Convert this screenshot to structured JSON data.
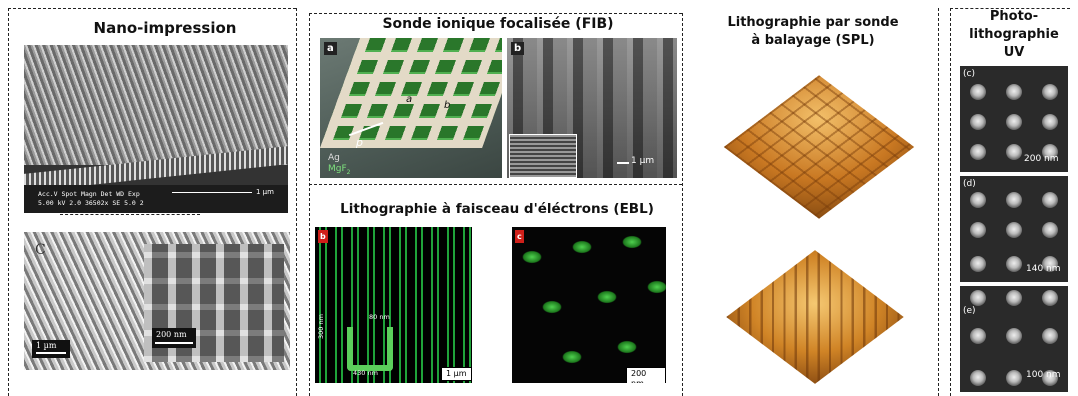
{
  "sections": {
    "nano": {
      "title": "Nano-impression"
    },
    "fib": {
      "title": "Sonde ionique focalisée (FIB)"
    },
    "ebl": {
      "title": "Lithographie à faisceau d'éléctrons (EBL)"
    },
    "spl": {
      "title_line1": "Lithographie par sonde",
      "title_line2": "à balayage (SPL)"
    },
    "uv": {
      "title_line1": "Photo-",
      "title_line2": "lithographie",
      "title_line3": "UV"
    }
  },
  "nano_top": {
    "info_row1": "Acc.V  Spot Magn    Det  WD  Exp",
    "info_row2": "5.00 kV 2.0  36502x  SE   5.0  2",
    "scale": "1 µm"
  },
  "nano_bottom": {
    "panel_label": "C",
    "scale_main": "1 µm",
    "scale_inset": "200 nm"
  },
  "fib_a": {
    "panel_label": "a",
    "label_a": "a",
    "label_b": "b",
    "label_p": "p",
    "material1": "Ag",
    "material2": "MgF",
    "material2_sub": "2"
  },
  "fib_b": {
    "panel_label": "b",
    "scale": "1 µm"
  },
  "ebl_left": {
    "panel_label": "b",
    "dim_width": "80 nm",
    "dim_height": "300 nm",
    "dim_base": "430 nm",
    "scale": "1 µm"
  },
  "ebl_right": {
    "panel_label": "c",
    "scale": "200 nm"
  },
  "uv_c": {
    "panel_label": "(c)",
    "scale": "200 nm"
  },
  "uv_d": {
    "panel_label": "(d)",
    "scale": "140 nm"
  },
  "uv_e": {
    "panel_label": "(e)",
    "scale": "100 nm"
  },
  "colors": {
    "green": "#3fbf3f",
    "afm_orange": "#d98a2b",
    "sem_gray": "#8a8a8a"
  }
}
